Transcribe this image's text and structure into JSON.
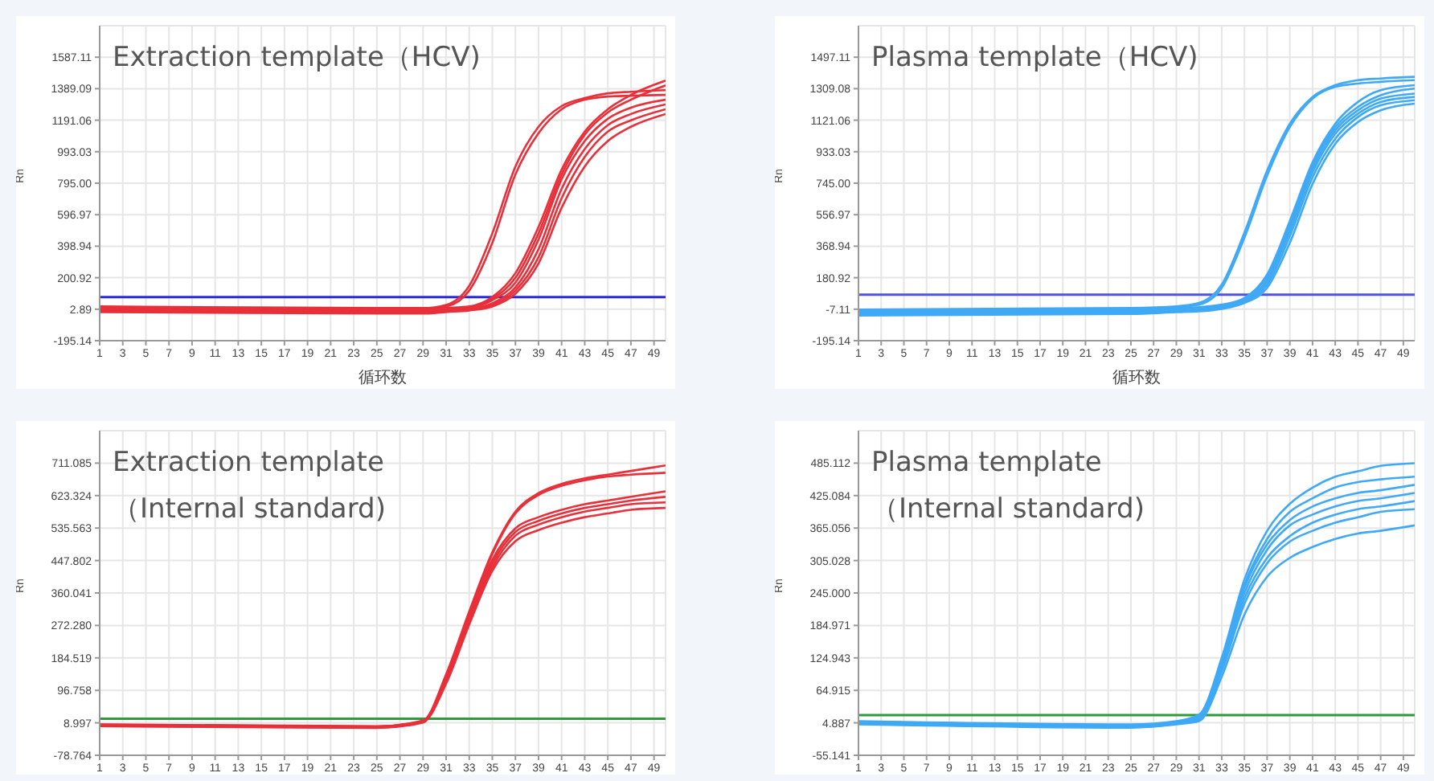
{
  "chart_data": [
    {
      "type": "line",
      "title": "Extraction template（HCV)",
      "xlabel": "循环数",
      "ylabel": "Rn",
      "x": [
        1,
        25,
        29,
        31,
        33,
        35,
        37,
        39,
        41,
        43,
        45,
        47,
        50
      ],
      "xlim": [
        1,
        50
      ],
      "xticks": [
        1,
        3,
        5,
        7,
        9,
        11,
        13,
        15,
        17,
        19,
        21,
        23,
        25,
        27,
        29,
        31,
        33,
        35,
        37,
        39,
        41,
        43,
        45,
        47,
        49
      ],
      "ylim": [
        -195.14,
        1785.14
      ],
      "yticks": [
        -195.14,
        2.89,
        200.92,
        398.94,
        596.97,
        {
          "value": 795,
          "label": "795.00"
        },
        993.03,
        1191.06,
        1389.09,
        1587.11
      ],
      "grid": true,
      "marker": "none",
      "line_style": "solid",
      "ref_lines": [
        {
          "axis": "y",
          "value": 79,
          "color": "#2b2bdb"
        }
      ],
      "series": [
        {
          "color": "#e8303a",
          "values": [
            20,
            10,
            10,
            30,
            150,
            480,
            900,
            1150,
            1280,
            1330,
            1360,
            1370,
            1380
          ]
        },
        {
          "color": "#e8303a",
          "values": [
            15,
            5,
            5,
            20,
            120,
            420,
            850,
            1110,
            1260,
            1320,
            1340,
            1345,
            1350
          ]
        },
        {
          "color": "#e8303a",
          "values": [
            10,
            0,
            0,
            10,
            20,
            80,
            230,
            520,
            880,
            1120,
            1260,
            1350,
            1440
          ]
        },
        {
          "color": "#e8303a",
          "values": [
            5,
            -5,
            -5,
            5,
            15,
            70,
            200,
            480,
            850,
            1100,
            1240,
            1320,
            1410
          ]
        },
        {
          "color": "#e8303a",
          "values": [
            0,
            -10,
            -10,
            0,
            10,
            60,
            170,
            440,
            820,
            1060,
            1200,
            1270,
            1320
          ]
        },
        {
          "color": "#e8303a",
          "values": [
            -5,
            -15,
            -15,
            -5,
            5,
            40,
            140,
            380,
            760,
            1010,
            1160,
            1230,
            1290
          ]
        },
        {
          "color": "#e8303a",
          "values": [
            -10,
            -20,
            -20,
            -10,
            0,
            30,
            120,
            330,
            700,
            960,
            1120,
            1190,
            1260
          ]
        },
        {
          "color": "#e8303a",
          "values": [
            -15,
            -25,
            -25,
            -15,
            -5,
            20,
            100,
            290,
            640,
            900,
            1060,
            1150,
            1230
          ]
        }
      ]
    },
    {
      "type": "line",
      "title": "Plasma template（HCV)",
      "xlabel": "循环数",
      "ylabel": "Rn",
      "x": [
        1,
        25,
        29,
        31,
        33,
        35,
        37,
        39,
        41,
        43,
        45,
        47,
        50
      ],
      "xlim": [
        1,
        50
      ],
      "xticks": [
        1,
        3,
        5,
        7,
        9,
        11,
        13,
        15,
        17,
        19,
        21,
        23,
        25,
        27,
        29,
        31,
        33,
        35,
        37,
        39,
        41,
        43,
        45,
        47,
        49
      ],
      "ylim": [
        -195.14,
        1685.14
      ],
      "yticks": [
        -195.14,
        -7.11,
        180.92,
        368.94,
        556.97,
        {
          "value": 745,
          "label": "745.00"
        },
        933.03,
        1121.06,
        1309.08,
        1497.11
      ],
      "grid": true,
      "marker": "none",
      "line_style": "solid",
      "ref_lines": [
        {
          "axis": "y",
          "value": 80,
          "color": "#5050e8"
        }
      ],
      "series": [
        {
          "color": "#3fa9f5",
          "values": [
            -10,
            0,
            10,
            30,
            140,
            450,
            820,
            1100,
            1260,
            1330,
            1360,
            1370,
            1380
          ]
        },
        {
          "color": "#3fa9f5",
          "values": [
            -15,
            -5,
            5,
            20,
            120,
            420,
            790,
            1080,
            1250,
            1320,
            1340,
            1350,
            1360
          ]
        },
        {
          "color": "#3fa9f5",
          "values": [
            -20,
            -10,
            0,
            5,
            20,
            60,
            200,
            520,
            870,
            1100,
            1230,
            1300,
            1330
          ]
        },
        {
          "color": "#3fa9f5",
          "values": [
            -25,
            -15,
            -5,
            0,
            15,
            55,
            190,
            500,
            850,
            1080,
            1200,
            1270,
            1310
          ]
        },
        {
          "color": "#3fa9f5",
          "values": [
            -30,
            -20,
            -10,
            -5,
            10,
            50,
            170,
            480,
            830,
            1060,
            1180,
            1250,
            1280
          ]
        },
        {
          "color": "#3fa9f5",
          "values": [
            -35,
            -25,
            -15,
            -10,
            5,
            40,
            160,
            460,
            810,
            1040,
            1160,
            1230,
            1260
          ]
        },
        {
          "color": "#3fa9f5",
          "values": [
            -40,
            -30,
            -20,
            -15,
            0,
            35,
            140,
            430,
            780,
            1010,
            1140,
            1210,
            1240
          ]
        },
        {
          "color": "#3fa9f5",
          "values": [
            -45,
            -35,
            -25,
            -20,
            -5,
            30,
            120,
            390,
            740,
            980,
            1110,
            1180,
            1220
          ]
        }
      ]
    },
    {
      "type": "line",
      "title": "Extraction template\n（Internal standard)",
      "ylabel": "Rn",
      "x": [
        1,
        25,
        29,
        31,
        33,
        35,
        37,
        39,
        41,
        43,
        45,
        47,
        50
      ],
      "xlim": [
        1,
        50
      ],
      "xticks": [
        1,
        3,
        5,
        7,
        9,
        11,
        13,
        15,
        17,
        19,
        21,
        23,
        25,
        27,
        29,
        31,
        33,
        35,
        37,
        39,
        41,
        43,
        45,
        47,
        49
      ],
      "ylim": [
        -78.764,
        798.846
      ],
      "yticks": [
        -78.764,
        8.997,
        96.758,
        184.519,
        {
          "value": 272.28,
          "label": "272.280"
        },
        360.041,
        447.802,
        535.563,
        623.324,
        711.085
      ],
      "grid": true,
      "marker": "none",
      "line_style": "solid",
      "ref_lines": [
        {
          "axis": "y",
          "value": 20,
          "color": "#2e9a3a"
        }
      ],
      "series": [
        {
          "color": "#e8303a",
          "values": [
            5,
            0,
            15,
            140,
            310,
            470,
            580,
            630,
            655,
            670,
            680,
            690,
            705
          ]
        },
        {
          "color": "#e8303a",
          "values": [
            4,
            -1,
            14,
            135,
            305,
            465,
            575,
            625,
            650,
            665,
            675,
            680,
            685
          ]
        },
        {
          "color": "#e8303a",
          "values": [
            3,
            -2,
            13,
            130,
            300,
            450,
            535,
            565,
            585,
            600,
            610,
            620,
            635
          ]
        },
        {
          "color": "#e8303a",
          "values": [
            2,
            -3,
            12,
            125,
            290,
            440,
            525,
            555,
            575,
            590,
            600,
            610,
            620
          ]
        },
        {
          "color": "#e8303a",
          "values": [
            1,
            -4,
            11,
            120,
            285,
            430,
            515,
            545,
            565,
            580,
            590,
            600,
            605
          ]
        },
        {
          "color": "#e8303a",
          "values": [
            0,
            -5,
            10,
            115,
            275,
            420,
            500,
            530,
            550,
            565,
            575,
            585,
            590
          ]
        }
      ]
    },
    {
      "type": "line",
      "title": "Plasma template\n（Internal standard)",
      "ylabel": "Rn",
      "x": [
        1,
        25,
        29,
        31,
        33,
        35,
        37,
        39,
        41,
        43,
        45,
        47,
        50
      ],
      "xlim": [
        1,
        50
      ],
      "xticks": [
        1,
        3,
        5,
        7,
        9,
        11,
        13,
        15,
        17,
        19,
        21,
        23,
        25,
        27,
        29,
        31,
        33,
        35,
        37,
        39,
        41,
        43,
        45,
        47,
        49
      ],
      "ylim": [
        -55.141,
        545.14
      ],
      "yticks": [
        -55.141,
        4.887,
        64.915,
        124.943,
        184.971,
        {
          "value": 245,
          "label": "245.000"
        },
        305.028,
        365.056,
        425.084,
        485.112
      ],
      "grid": true,
      "marker": "none",
      "line_style": "solid",
      "ref_lines": [
        {
          "axis": "y",
          "value": 19,
          "color": "#2e9a3a"
        }
      ],
      "series": [
        {
          "color": "#3fa9f5",
          "values": [
            8,
            2,
            8,
            20,
            125,
            270,
            360,
            410,
            440,
            460,
            470,
            480,
            485
          ]
        },
        {
          "color": "#3fa9f5",
          "values": [
            7,
            1,
            7,
            18,
            120,
            260,
            345,
            395,
            420,
            440,
            450,
            455,
            460
          ]
        },
        {
          "color": "#3fa9f5",
          "values": [
            6,
            0,
            6,
            16,
            115,
            255,
            335,
            380,
            405,
            420,
            430,
            435,
            445
          ]
        },
        {
          "color": "#3fa9f5",
          "values": [
            5,
            -1,
            5,
            14,
            110,
            245,
            325,
            370,
            390,
            405,
            415,
            420,
            430
          ]
        },
        {
          "color": "#3fa9f5",
          "values": [
            4,
            -2,
            4,
            12,
            105,
            235,
            310,
            350,
            375,
            390,
            400,
            405,
            415
          ]
        },
        {
          "color": "#3fa9f5",
          "values": [
            3,
            -3,
            3,
            10,
            100,
            225,
            300,
            340,
            360,
            375,
            385,
            395,
            400
          ]
        },
        {
          "color": "#3fa9f5",
          "values": [
            2,
            -4,
            2,
            8,
            90,
            205,
            275,
            310,
            330,
            345,
            355,
            360,
            370
          ]
        }
      ]
    }
  ]
}
